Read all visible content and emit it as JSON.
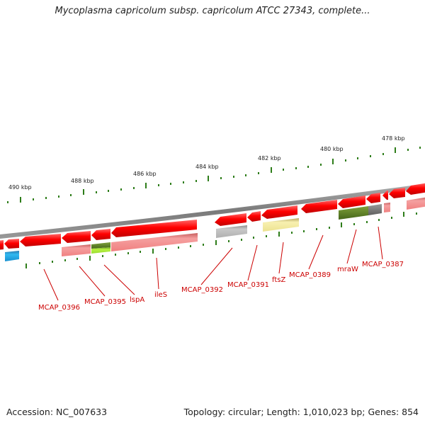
{
  "title": "Mycoplasma capricolum subsp. capricolum ATCC 27343, complete...",
  "footer": {
    "accession": "Accession: NC_007633",
    "summary": "Topology: circular; Length: 1,010,023 bp; Genes: 854"
  },
  "colors": {
    "backbone": "#8a8a8a",
    "tick": "#2e7d1a",
    "gene_red": "#ff0000",
    "gene_pink": "#f08c8c",
    "gene_gray": "#b5b5b5",
    "gene_dark_gray": "#707070",
    "gene_yellow": "#f0e8a0",
    "gene_olive": "#5a7f20",
    "gene_lime": "#9ddd2e",
    "gene_cyan": "#1ea0dc",
    "label": "#cc0000"
  },
  "scale": {
    "tick_labels": [
      "490 kbp",
      "488 kbp",
      "486 kbp",
      "484 kbp",
      "482 kbp",
      "480 kbp",
      "478 kbp"
    ]
  },
  "gene_labels": [
    "MCAP_0396",
    "MCAP_0395",
    "lspA",
    "ileS",
    "MCAP_0392",
    "MCAP_0391",
    "ftsZ",
    "MCAP_0389",
    "mraW",
    "MCAP_0387"
  ]
}
